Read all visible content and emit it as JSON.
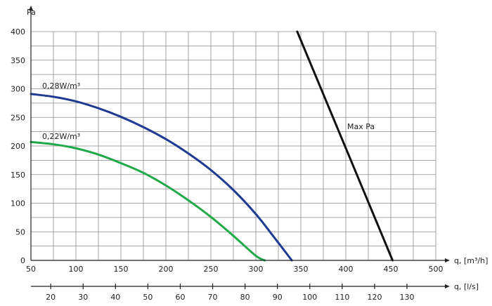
{
  "chart_data": {
    "type": "line",
    "title": "",
    "ylabel": "Pa",
    "xlabel": "q, [m³/h]",
    "x2label": "q, [l/s]",
    "xlim": [
      50,
      500
    ],
    "ylim": [
      0,
      400
    ],
    "x_ticks": [
      50,
      100,
      150,
      200,
      250,
      300,
      350,
      400,
      450,
      500
    ],
    "y_ticks": [
      0,
      50,
      100,
      150,
      200,
      250,
      300,
      350,
      400
    ],
    "x2_ticks": [
      20,
      30,
      40,
      50,
      60,
      70,
      80,
      90,
      100,
      110,
      120,
      130
    ],
    "x2_to_x_factor": 3.6,
    "grid": true,
    "series": [
      {
        "name": "0,28W/m³",
        "color": "#1f3a93",
        "x": [
          50,
          75,
          100,
          125,
          150,
          175,
          200,
          225,
          250,
          275,
          300,
          320,
          340
        ],
        "y": [
          291,
          286,
          278,
          266,
          251,
          233,
          212,
          187,
          158,
          123,
          81,
          41,
          0
        ]
      },
      {
        "name": "0,22W/m³",
        "color": "#1faa4a",
        "x": [
          50,
          75,
          100,
          125,
          150,
          175,
          200,
          225,
          250,
          275,
          300,
          310
        ],
        "y": [
          207,
          203,
          196,
          185,
          170,
          153,
          131,
          105,
          76,
          43,
          8,
          0
        ]
      },
      {
        "name": "Max Pa",
        "color": "#111111",
        "x": [
          346,
          452
        ],
        "y": [
          400,
          0
        ]
      }
    ]
  }
}
